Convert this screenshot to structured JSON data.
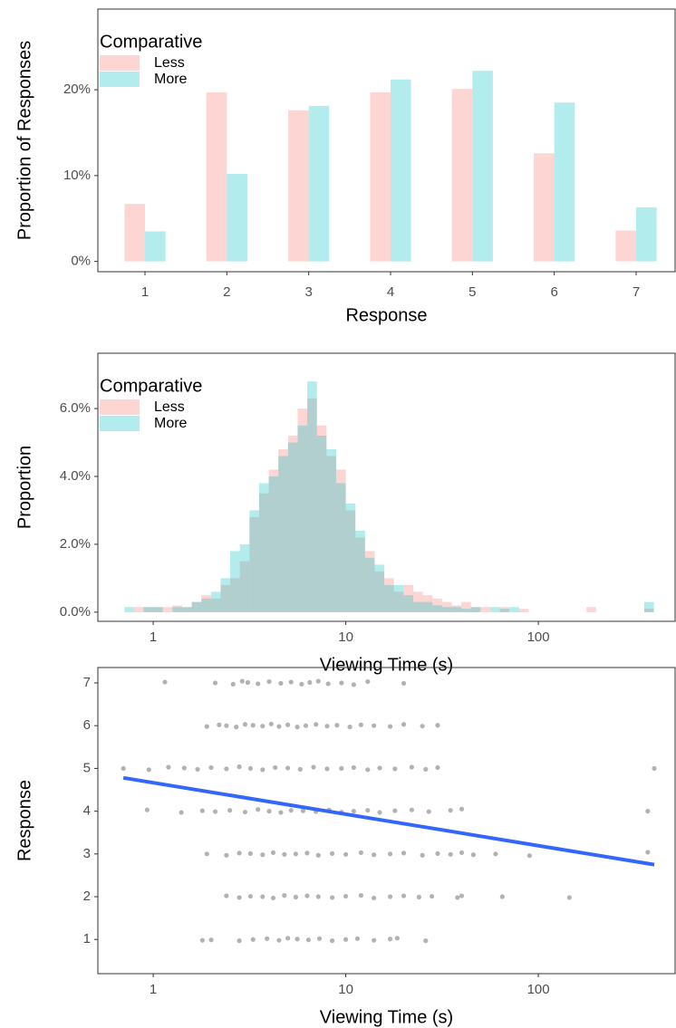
{
  "chart_data": [
    {
      "type": "bar",
      "xlabel": "Response",
      "ylabel": "Proportion of Responses",
      "categories": [
        "1",
        "2",
        "3",
        "4",
        "5",
        "6",
        "7"
      ],
      "legend_title": "Comparative",
      "alpha": 0.3,
      "series": [
        {
          "name": "Less",
          "color": "#F8766D",
          "values": [
            6.7,
            19.7,
            17.6,
            19.7,
            20.1,
            12.6,
            3.6
          ]
        },
        {
          "name": "More",
          "color": "#00BFC4",
          "values": [
            3.5,
            10.2,
            18.1,
            21.2,
            22.2,
            18.5,
            6.3
          ]
        }
      ],
      "ylim": [
        -1.2,
        29.4
      ],
      "yticks": [
        {
          "value": 0,
          "label": "0%"
        },
        {
          "value": 10,
          "label": "10%"
        },
        {
          "value": 20,
          "label": "20%"
        }
      ]
    },
    {
      "type": "histogram",
      "xlabel": "Viewing Time (s)",
      "ylabel": "Proportion",
      "legend_title": "Comparative",
      "alpha": 0.3,
      "xlog": true,
      "bins": [
        0.708,
        0.794,
        0.891,
        1,
        1.122,
        1.259,
        1.413,
        1.585,
        1.778,
        1.995,
        2.239,
        2.512,
        2.818,
        3.162,
        3.548,
        3.981,
        4.467,
        5.012,
        5.623,
        6.31,
        7.079,
        7.943,
        8.913,
        10,
        11.22,
        12.59,
        14.13,
        15.85,
        17.78,
        19.95,
        22.39,
        25.12,
        28.18,
        31.62,
        35.48,
        39.81,
        44.67,
        50.12,
        56.23,
        63.1,
        70.79,
        79.43,
        89.13,
        100,
        112.2,
        125.9,
        141.3,
        158.5,
        177.8,
        199.5,
        223.9,
        251.2,
        281.8,
        316.2,
        354.8,
        398.1
      ],
      "series": [
        {
          "name": "Less",
          "color": "#F8766D",
          "values": [
            0,
            0.15,
            0.15,
            0.15,
            0.15,
            0.2,
            0.15,
            0.3,
            0.5,
            0.4,
            0.8,
            1.0,
            1.5,
            2.8,
            3.5,
            4.2,
            4.8,
            5.2,
            6.0,
            6.3,
            5.5,
            4.6,
            4.2,
            3.0,
            2.2,
            1.8,
            1.2,
            1.0,
            0.6,
            0.8,
            0.6,
            0.5,
            0.4,
            0.3,
            0.2,
            0.3,
            0.15,
            0.15,
            0,
            0.15,
            0,
            0.1,
            0,
            0,
            0,
            0,
            0,
            0,
            0.15,
            0,
            0,
            0,
            0,
            0,
            0.1
          ]
        },
        {
          "name": "More",
          "color": "#00BFC4",
          "values": [
            0.15,
            0,
            0.15,
            0.15,
            0,
            0.15,
            0.15,
            0.3,
            0.4,
            0.6,
            1.0,
            1.8,
            2.0,
            3.0,
            3.8,
            4.0,
            4.6,
            5.0,
            5.5,
            6.8,
            5.2,
            4.8,
            3.8,
            3.2,
            2.4,
            1.6,
            1.4,
            0.8,
            0.8,
            0.5,
            0.3,
            0.3,
            0.2,
            0.15,
            0.15,
            0.1,
            0.15,
            0,
            0.15,
            0.1,
            0.15,
            0,
            0,
            0,
            0,
            0,
            0,
            0,
            0,
            0,
            0,
            0,
            0,
            0,
            0.3
          ]
        }
      ],
      "xlim": [
        0.516,
        513
      ],
      "xticks": [
        1,
        10,
        100
      ],
      "ylim": [
        -0.27,
        7.63
      ],
      "yticks": [
        {
          "value": 0,
          "label": "0.0%"
        },
        {
          "value": 2,
          "label": "2.0%"
        },
        {
          "value": 4,
          "label": "4.0%"
        },
        {
          "value": 6,
          "label": "6.0%"
        }
      ]
    },
    {
      "type": "scatter",
      "xlabel": "Viewing Time (s)",
      "ylabel": "Response",
      "xlog": true,
      "series": [
        {
          "color": "#000000",
          "alpha": 0.3,
          "x": [
            1.15,
            2.1,
            2.6,
            2.9,
            3.1,
            3.5,
            4.0,
            4.6,
            5.2,
            5.9,
            6.5,
            7.2,
            8.1,
            9.5,
            11,
            13,
            20,
            1.9,
            2.2,
            2.4,
            2.7,
            3.0,
            3.3,
            3.7,
            4.1,
            4.5,
            5.0,
            5.6,
            6.2,
            7.0,
            8.0,
            9.0,
            10.5,
            12,
            14,
            17,
            20,
            25,
            30,
            0.7,
            0.95,
            1.2,
            1.45,
            1.7,
            2.0,
            2.4,
            2.8,
            3.2,
            3.7,
            4.3,
            5.0,
            5.8,
            6.8,
            8,
            9.5,
            11,
            13,
            15,
            18,
            22,
            26,
            30,
            400,
            0.93,
            1.4,
            1.8,
            2.1,
            2.5,
            3.0,
            3.5,
            4.0,
            4.6,
            5.2,
            6.0,
            7.0,
            8.2,
            9.5,
            11,
            13,
            15,
            18,
            22,
            27,
            35,
            40,
            370,
            1.9,
            2.4,
            2.8,
            3.2,
            3.7,
            4.2,
            4.8,
            5.5,
            6.3,
            7.2,
            8.5,
            10,
            12,
            14,
            17,
            20,
            25,
            30,
            35,
            40,
            46,
            60,
            90,
            370,
            2.4,
            2.8,
            3.2,
            3.7,
            4.2,
            4.8,
            5.5,
            6.3,
            7.2,
            8.5,
            10,
            12,
            14,
            17,
            20,
            24,
            28,
            38,
            40,
            65,
            145,
            1.8,
            2.0,
            2.8,
            3.3,
            3.9,
            4.5,
            5.0,
            5.6,
            6.4,
            7.3,
            8.5,
            10,
            11.5,
            14,
            17,
            18.5,
            26
          ],
          "y": [
            7.02,
            7.0,
            6.97,
            7.04,
            7.01,
            6.98,
            7.03,
            6.99,
            7.02,
            6.97,
            7.01,
            7.04,
            6.98,
            7.0,
            6.96,
            7.03,
            6.99,
            5.98,
            6.02,
            6.0,
            5.97,
            6.03,
            6.01,
            5.99,
            6.04,
            5.98,
            6.02,
            5.97,
            6.0,
            6.03,
            5.99,
            6.01,
            5.97,
            6.02,
            6.0,
            5.98,
            6.03,
            5.99,
            6.01,
            5.0,
            4.97,
            5.03,
            5.01,
            4.98,
            5.02,
            4.99,
            5.04,
            5.0,
            4.97,
            5.02,
            5.01,
            4.98,
            5.03,
            4.99,
            5.0,
            5.02,
            4.97,
            5.01,
            4.99,
            5.03,
            4.98,
            5.02,
            5.0,
            4.03,
            3.97,
            4.01,
            3.99,
            4.02,
            3.98,
            4.04,
            4.0,
            3.97,
            4.02,
            4.01,
            3.99,
            4.03,
            3.98,
            4.0,
            4.02,
            3.97,
            4.01,
            4.03,
            3.99,
            4.02,
            4.05,
            4.0,
            3.0,
            2.97,
            3.02,
            3.01,
            2.98,
            3.03,
            2.99,
            3.0,
            3.02,
            2.97,
            3.01,
            2.99,
            3.03,
            2.98,
            3.0,
            3.02,
            2.97,
            3.01,
            2.99,
            3.03,
            2.98,
            3.0,
            2.96,
            3.04,
            2.02,
            1.98,
            2.01,
            2.0,
            1.97,
            2.03,
            1.99,
            2.02,
            2.0,
            1.98,
            2.01,
            2.03,
            1.97,
            2.0,
            2.02,
            1.99,
            2.01,
            1.98,
            2.02,
            2.0,
            1.98,
            0.98,
            0.99,
            0.97,
            1.0,
            1.02,
            0.98,
            1.03,
            1.01,
            0.99,
            1.02,
            0.97,
            1.0,
            1.02,
            0.98,
            1.01,
            1.03,
            0.97
          ]
        }
      ],
      "fit": {
        "color": "#3366FF",
        "x": [
          0.7,
          400
        ],
        "y": [
          4.78,
          2.75
        ]
      },
      "xlim": [
        0.516,
        513
      ],
      "xticks": [
        1,
        10,
        100
      ],
      "ylim": [
        0.2,
        7.36
      ],
      "yticks": [
        1,
        2,
        3,
        4,
        5,
        6,
        7
      ]
    }
  ]
}
